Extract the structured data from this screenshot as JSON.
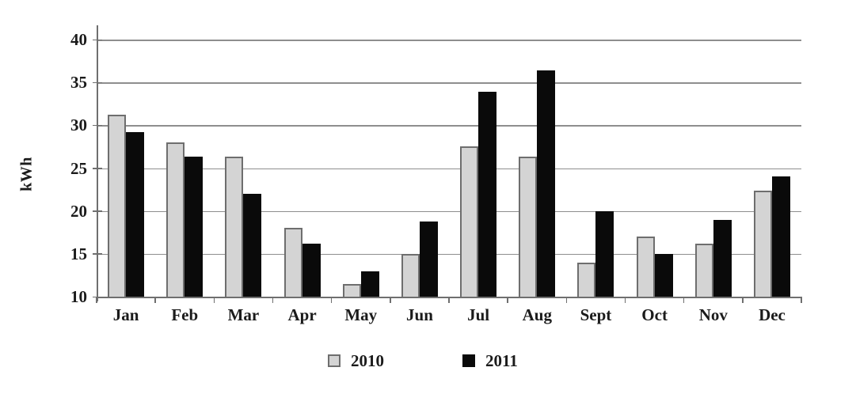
{
  "chart_data": {
    "type": "bar",
    "title": "",
    "xlabel": "",
    "ylabel": "kWh",
    "categories": [
      "Jan",
      "Feb",
      "Mar",
      "Apr",
      "May",
      "Jun",
      "Jul",
      "Aug",
      "Sept",
      "Oct",
      "Nov",
      "Dec"
    ],
    "series": [
      {
        "name": "2010",
        "color": "#d4d4d4",
        "border_color": "#6e6e6e",
        "values": [
          31.2,
          28.0,
          26.3,
          18.0,
          11.5,
          15.0,
          27.5,
          26.3,
          14.0,
          17.0,
          16.2,
          22.4
        ]
      },
      {
        "name": "2011",
        "color": "#0a0a0a",
        "border_color": "#0a0a0a",
        "values": [
          29.2,
          26.3,
          22.0,
          16.2,
          13.0,
          18.8,
          33.9,
          36.4,
          20.0,
          15.0,
          19.0,
          24.0
        ]
      }
    ],
    "ylim": [
      10,
      40
    ],
    "yticks": [
      10,
      15,
      20,
      25,
      30,
      35,
      40
    ],
    "grid": true,
    "gridline_color": "#8e8e8e",
    "axis_color": "#6f6f6f",
    "legend_position": "bottom"
  }
}
